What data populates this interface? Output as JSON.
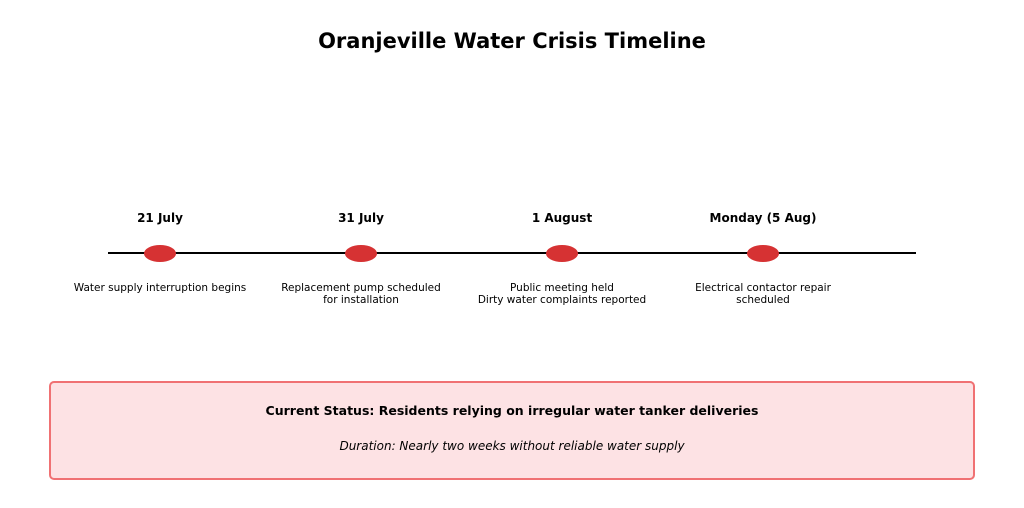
{
  "title": "Oranjeville Water Crisis Timeline",
  "colors": {
    "marker": "#d63233",
    "status_background": "#fde2e4",
    "status_border": "#f07173",
    "timeline_line": "#000000"
  },
  "events": [
    {
      "date": "21 July",
      "description": [
        "Water supply interruption begins"
      ]
    },
    {
      "date": "31 July",
      "description": [
        "Replacement pump scheduled",
        "for installation"
      ]
    },
    {
      "date": "1 August",
      "description": [
        "Public meeting held",
        "Dirty water complaints reported"
      ]
    },
    {
      "date": "Monday (5 Aug)",
      "description": [
        "Electrical contactor repair",
        "scheduled"
      ]
    }
  ],
  "status": {
    "headline": "Current Status: Residents relying on irregular water tanker deliveries",
    "duration": "Duration: Nearly two weeks without reliable water supply"
  }
}
